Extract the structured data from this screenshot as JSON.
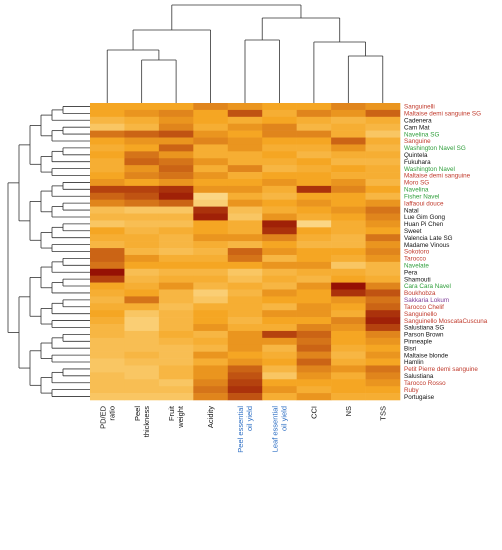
{
  "chart_data": {
    "type": "heatmap",
    "title": "",
    "columns": [
      {
        "label": "PD/ED ratio",
        "lines": [
          "PD/ED",
          "ratio"
        ],
        "color": "#111111"
      },
      {
        "label": "Peel thickness",
        "lines": [
          "Peel",
          "thickness"
        ],
        "color": "#111111"
      },
      {
        "label": "Fruit weight",
        "lines": [
          "Fruit",
          "weight"
        ],
        "color": "#111111"
      },
      {
        "label": "Acidity",
        "lines": [
          "Acidity"
        ],
        "color": "#111111"
      },
      {
        "label": "Peel essential oil yield",
        "lines": [
          "Peel essential",
          "oil yield"
        ],
        "color": "#2e6fc4"
      },
      {
        "label": "Leaf essential oil yield",
        "lines": [
          "Leaf essential",
          "oil yield"
        ],
        "color": "#2e6fc4"
      },
      {
        "label": "CCI",
        "lines": [
          "CCI"
        ],
        "color": "#111111"
      },
      {
        "label": "NS",
        "lines": [
          "NS"
        ],
        "color": "#111111"
      },
      {
        "label": "TSS",
        "lines": [
          "TSS"
        ],
        "color": "#111111"
      }
    ],
    "rows": [
      {
        "label": "Sanguinelli",
        "group": "blood"
      },
      {
        "label": "Maltaise demi sanguine SG",
        "group": "blood"
      },
      {
        "label": "Cadenera",
        "group": "common"
      },
      {
        "label": "Cam Mat",
        "group": "common"
      },
      {
        "label": "Navelina SG",
        "group": "navel"
      },
      {
        "label": "Sanguine",
        "group": "blood"
      },
      {
        "label": "Washington Navel SG",
        "group": "navel"
      },
      {
        "label": "Quintela",
        "group": "common"
      },
      {
        "label": "Fukuhara",
        "group": "common"
      },
      {
        "label": "Washington Navel",
        "group": "navel"
      },
      {
        "label": "Maltaise demi sanguine",
        "group": "blood"
      },
      {
        "label": "Moro SG",
        "group": "blood"
      },
      {
        "label": "Navelina",
        "group": "navel"
      },
      {
        "label": "Fisher Navel",
        "group": "navel"
      },
      {
        "label": "Iaffaoui douce",
        "group": "blood"
      },
      {
        "label": "Natal",
        "group": "common"
      },
      {
        "label": "Lue Gim Gong",
        "group": "common"
      },
      {
        "label": "Huan Pi Chen",
        "group": "common"
      },
      {
        "label": "Sweet",
        "group": "common"
      },
      {
        "label": "Valencia Late SG",
        "group": "common"
      },
      {
        "label": "Madame Vinous",
        "group": "common"
      },
      {
        "label": "Sokotoro",
        "group": "blood"
      },
      {
        "label": "Tarocco",
        "group": "blood"
      },
      {
        "label": "Navelate",
        "group": "navel"
      },
      {
        "label": "Pera",
        "group": "common"
      },
      {
        "label": "Shamouti",
        "group": "common"
      },
      {
        "label": "Cara Cara Navel",
        "group": "navel"
      },
      {
        "label": "Boukhobza",
        "group": "blood"
      },
      {
        "label": "Sakkaria Lokum",
        "group": "purple"
      },
      {
        "label": "Tarocco Chelif",
        "group": "blood"
      },
      {
        "label": "Sanguinello",
        "group": "blood"
      },
      {
        "label": "Sanguinello MoscataCuscuna",
        "group": "blood"
      },
      {
        "label": "Salustiana SG",
        "group": "common"
      },
      {
        "label": "Parson Brown",
        "group": "common"
      },
      {
        "label": "Pinneaple",
        "group": "common"
      },
      {
        "label": "Bisri",
        "group": "common"
      },
      {
        "label": "Maltaise blonde",
        "group": "common"
      },
      {
        "label": "Hamlin",
        "group": "common"
      },
      {
        "label": "Petit Pierre demi sanguine",
        "group": "blood"
      },
      {
        "label": "Salustiana",
        "group": "common"
      },
      {
        "label": "Tarocco Rosso",
        "group": "blood"
      },
      {
        "label": "Ruby",
        "group": "blood"
      },
      {
        "label": "Portugaise",
        "group": "common"
      }
    ],
    "group_colors": {
      "common": "#111111",
      "blood": "#c0392b",
      "navel": "#2e9e3a",
      "purple": "#7d3c98"
    },
    "color_scale": {
      "low": "#fff6c4",
      "mid": "#f5a623",
      "high": "#8b0000",
      "min": 0,
      "max": 1
    },
    "values": [
      [
        0.5,
        0.5,
        0.5,
        0.6,
        0.55,
        0.5,
        0.5,
        0.6,
        0.55
      ],
      [
        0.5,
        0.55,
        0.6,
        0.5,
        0.75,
        0.45,
        0.6,
        0.55,
        0.7
      ],
      [
        0.4,
        0.45,
        0.55,
        0.5,
        0.45,
        0.5,
        0.45,
        0.4,
        0.45
      ],
      [
        0.3,
        0.4,
        0.6,
        0.45,
        0.55,
        0.6,
        0.4,
        0.45,
        0.4
      ],
      [
        0.65,
        0.7,
        0.75,
        0.55,
        0.5,
        0.6,
        0.6,
        0.45,
        0.3
      ],
      [
        0.5,
        0.55,
        0.55,
        0.6,
        0.55,
        0.5,
        0.5,
        0.7,
        0.45
      ],
      [
        0.45,
        0.5,
        0.7,
        0.45,
        0.55,
        0.45,
        0.45,
        0.55,
        0.4
      ],
      [
        0.5,
        0.65,
        0.55,
        0.45,
        0.45,
        0.5,
        0.4,
        0.45,
        0.45
      ],
      [
        0.45,
        0.7,
        0.65,
        0.55,
        0.45,
        0.45,
        0.5,
        0.4,
        0.4
      ],
      [
        0.45,
        0.55,
        0.7,
        0.45,
        0.6,
        0.4,
        0.45,
        0.5,
        0.45
      ],
      [
        0.5,
        0.6,
        0.65,
        0.55,
        0.45,
        0.5,
        0.5,
        0.45,
        0.45
      ],
      [
        0.55,
        0.5,
        0.55,
        0.5,
        0.5,
        0.55,
        0.5,
        0.55,
        0.4
      ],
      [
        0.8,
        0.8,
        0.85,
        0.55,
        0.55,
        0.45,
        0.85,
        0.6,
        0.5
      ],
      [
        0.7,
        0.75,
        0.9,
        0.2,
        0.45,
        0.4,
        0.5,
        0.5,
        0.4
      ],
      [
        0.6,
        0.65,
        0.7,
        0.25,
        0.55,
        0.5,
        0.55,
        0.5,
        0.55
      ],
      [
        0.35,
        0.3,
        0.3,
        0.85,
        0.35,
        0.45,
        0.5,
        0.55,
        0.65
      ],
      [
        0.4,
        0.4,
        0.4,
        0.9,
        0.3,
        0.55,
        0.45,
        0.5,
        0.6
      ],
      [
        0.3,
        0.35,
        0.35,
        0.5,
        0.45,
        0.9,
        0.2,
        0.45,
        0.55
      ],
      [
        0.5,
        0.4,
        0.45,
        0.5,
        0.45,
        0.85,
        0.5,
        0.45,
        0.5
      ],
      [
        0.45,
        0.45,
        0.4,
        0.55,
        0.55,
        0.6,
        0.45,
        0.4,
        0.65
      ],
      [
        0.4,
        0.45,
        0.4,
        0.45,
        0.4,
        0.5,
        0.4,
        0.4,
        0.55
      ],
      [
        0.7,
        0.4,
        0.35,
        0.4,
        0.7,
        0.55,
        0.5,
        0.5,
        0.6
      ],
      [
        0.7,
        0.55,
        0.45,
        0.45,
        0.65,
        0.4,
        0.5,
        0.45,
        0.55
      ],
      [
        0.65,
        0.5,
        0.5,
        0.5,
        0.5,
        0.55,
        0.55,
        0.3,
        0.4
      ],
      [
        0.95,
        0.35,
        0.4,
        0.4,
        0.3,
        0.4,
        0.45,
        0.45,
        0.4
      ],
      [
        0.8,
        0.4,
        0.45,
        0.45,
        0.35,
        0.45,
        0.4,
        0.5,
        0.45
      ],
      [
        0.5,
        0.45,
        0.55,
        0.4,
        0.45,
        0.4,
        0.55,
        0.95,
        0.6
      ],
      [
        0.45,
        0.5,
        0.4,
        0.25,
        0.4,
        0.55,
        0.5,
        0.85,
        0.75
      ],
      [
        0.4,
        0.65,
        0.4,
        0.3,
        0.45,
        0.5,
        0.5,
        0.55,
        0.65
      ],
      [
        0.45,
        0.45,
        0.35,
        0.45,
        0.45,
        0.4,
        0.55,
        0.5,
        0.7
      ],
      [
        0.5,
        0.3,
        0.4,
        0.5,
        0.45,
        0.55,
        0.55,
        0.45,
        0.85
      ],
      [
        0.45,
        0.25,
        0.4,
        0.5,
        0.4,
        0.5,
        0.5,
        0.6,
        0.9
      ],
      [
        0.4,
        0.25,
        0.4,
        0.55,
        0.45,
        0.45,
        0.6,
        0.55,
        0.8
      ],
      [
        0.4,
        0.35,
        0.45,
        0.4,
        0.55,
        0.8,
        0.7,
        0.5,
        0.6
      ],
      [
        0.35,
        0.35,
        0.4,
        0.45,
        0.55,
        0.55,
        0.65,
        0.5,
        0.55
      ],
      [
        0.35,
        0.35,
        0.35,
        0.4,
        0.55,
        0.4,
        0.7,
        0.45,
        0.5
      ],
      [
        0.35,
        0.4,
        0.35,
        0.55,
        0.5,
        0.45,
        0.6,
        0.4,
        0.55
      ],
      [
        0.3,
        0.35,
        0.35,
        0.45,
        0.55,
        0.5,
        0.7,
        0.45,
        0.5
      ],
      [
        0.3,
        0.3,
        0.4,
        0.55,
        0.7,
        0.4,
        0.6,
        0.55,
        0.65
      ],
      [
        0.35,
        0.3,
        0.4,
        0.55,
        0.75,
        0.3,
        0.55,
        0.45,
        0.6
      ],
      [
        0.35,
        0.35,
        0.3,
        0.6,
        0.8,
        0.5,
        0.5,
        0.5,
        0.55
      ],
      [
        0.35,
        0.35,
        0.35,
        0.65,
        0.85,
        0.55,
        0.45,
        0.5,
        0.5
      ],
      [
        0.3,
        0.3,
        0.3,
        0.6,
        0.75,
        0.45,
        0.55,
        0.45,
        0.45
      ]
    ]
  }
}
